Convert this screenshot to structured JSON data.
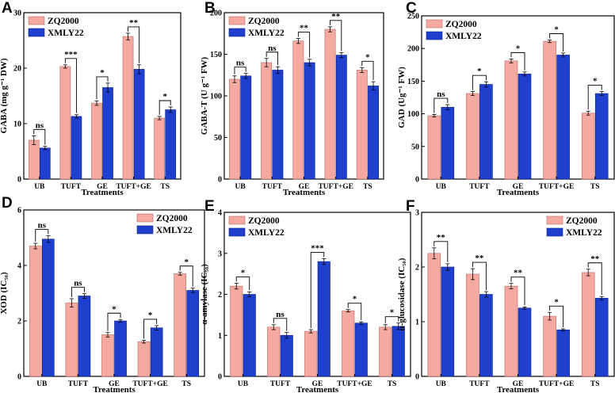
{
  "colors": {
    "pink": "#f5a9a1",
    "pink_edge": "#b56a62",
    "blue": "#1f3fcf",
    "blue_edge": "#0b1f80"
  },
  "chart_data": [
    {
      "type": "bar",
      "letter": "A",
      "ylabel": "GABA (mg g⁻¹ DW)",
      "xlabel": "Treatments",
      "ylim": [
        0,
        30
      ],
      "yticks": [
        "0",
        "10",
        "20",
        "30"
      ],
      "categories": [
        "UB",
        "TUFT",
        "GE",
        "TUFT+GE",
        "TS"
      ],
      "series": [
        {
          "name": "ZQ2000",
          "values": [
            7,
            20.3,
            13.7,
            25.7,
            11
          ],
          "errors": [
            0.8,
            0.3,
            0.4,
            0.6,
            0.3
          ]
        },
        {
          "name": "XMLY22",
          "values": [
            5.6,
            11.3,
            16.5,
            19.8,
            12.5
          ],
          "errors": [
            0.3,
            0.3,
            0.8,
            0.8,
            0.5
          ]
        }
      ],
      "significance": [
        "ns",
        "***",
        "*",
        "**",
        "*"
      ]
    },
    {
      "type": "bar",
      "letter": "B",
      "ylabel": "GABA-T (U g⁻¹ FW)",
      "xlabel": "Treatments",
      "ylim": [
        0,
        200
      ],
      "yticks": [
        "0",
        "50",
        "100",
        "150",
        "200"
      ],
      "categories": [
        "UB",
        "TUFT",
        "GE",
        "TUFT+GE",
        "TS"
      ],
      "series": [
        {
          "name": "ZQ2000",
          "values": [
            120,
            140,
            166,
            180,
            131
          ],
          "errors": [
            4,
            5,
            3,
            3,
            3
          ]
        },
        {
          "name": "XMLY22",
          "values": [
            124,
            131,
            140,
            149,
            112
          ],
          "errors": [
            3,
            4,
            4,
            3,
            5
          ]
        }
      ],
      "significance": [
        "ns",
        "ns",
        "**",
        "**",
        "*"
      ]
    },
    {
      "type": "bar",
      "letter": "C",
      "ylabel": "GAD (Ug⁻¹ FW)",
      "xlabel": "Treatments",
      "ylim": [
        0,
        250
      ],
      "yticks": [
        "0",
        "50",
        "100",
        "150",
        "200",
        "250"
      ],
      "categories": [
        "UB",
        "TUFT",
        "GE",
        "TUFT+GE",
        "TS"
      ],
      "series": [
        {
          "name": "ZQ2000",
          "values": [
            97,
            131,
            181,
            211,
            101
          ],
          "errors": [
            2,
            3,
            3,
            2,
            3
          ]
        },
        {
          "name": "XMLY22",
          "values": [
            110,
            145,
            161,
            190,
            131
          ],
          "errors": [
            4,
            4,
            3,
            3,
            3
          ]
        }
      ],
      "significance": [
        "ns",
        "*",
        "*",
        "*",
        "*"
      ]
    },
    {
      "type": "bar",
      "letter": "D",
      "ylabel": "XOD (IC₅₀)",
      "xlabel": "Treatments",
      "ylim": [
        0,
        6
      ],
      "yticks": [
        "0",
        "2",
        "4",
        "6"
      ],
      "categories": [
        "UB",
        "TUFT",
        "GE",
        "TUFT+GE",
        "TS"
      ],
      "series": [
        {
          "name": "ZQ2000",
          "values": [
            4.7,
            2.65,
            1.5,
            1.25,
            3.7
          ],
          "errors": [
            0.1,
            0.15,
            0.08,
            0.05,
            0.05
          ]
        },
        {
          "name": "XMLY22",
          "values": [
            4.95,
            2.9,
            2.0,
            1.75,
            3.1
          ],
          "errors": [
            0.12,
            0.08,
            0.05,
            0.08,
            0.08
          ]
        }
      ],
      "significance": [
        "ns",
        "ns",
        "*",
        "*",
        "*"
      ]
    },
    {
      "type": "bar",
      "letter": "E",
      "ylabel": "α-amylase (IC₅₀)",
      "xlabel": "Treatments",
      "ylim": [
        0,
        4
      ],
      "yticks": [
        "0",
        "1",
        "2",
        "3",
        "4"
      ],
      "categories": [
        "UB",
        "TUFT",
        "GE",
        "TUFT+GE",
        "TS"
      ],
      "series": [
        {
          "name": "ZQ2000",
          "values": [
            2.2,
            1.2,
            1.1,
            1.6,
            1.2
          ],
          "errors": [
            0.07,
            0.06,
            0.04,
            0.03,
            0.06
          ]
        },
        {
          "name": "XMLY22",
          "values": [
            2.0,
            1.0,
            2.8,
            1.3,
            1.22
          ],
          "errors": [
            0.06,
            0.07,
            0.07,
            0.03,
            0.08
          ]
        }
      ],
      "significance": [
        "*",
        "ns",
        "***",
        "*",
        "*"
      ]
    },
    {
      "type": "bar",
      "letter": "F",
      "ylabel": "α-glucosidase (IC₅₀)",
      "xlabel": "Treatments",
      "ylim": [
        0,
        3
      ],
      "yticks": [
        "0",
        "1",
        "2",
        "3"
      ],
      "categories": [
        "UB",
        "TUFT",
        "GE",
        "TUFT+GE",
        "TS"
      ],
      "series": [
        {
          "name": "ZQ2000",
          "values": [
            2.25,
            1.87,
            1.65,
            1.1,
            1.9
          ],
          "errors": [
            0.1,
            0.1,
            0.05,
            0.07,
            0.06
          ]
        },
        {
          "name": "XMLY22",
          "values": [
            2.0,
            1.5,
            1.25,
            0.85,
            1.43
          ],
          "errors": [
            0.06,
            0.05,
            0.02,
            0.02,
            0.03
          ]
        }
      ],
      "significance": [
        "**",
        "**",
        "**",
        "*",
        "**"
      ]
    }
  ]
}
